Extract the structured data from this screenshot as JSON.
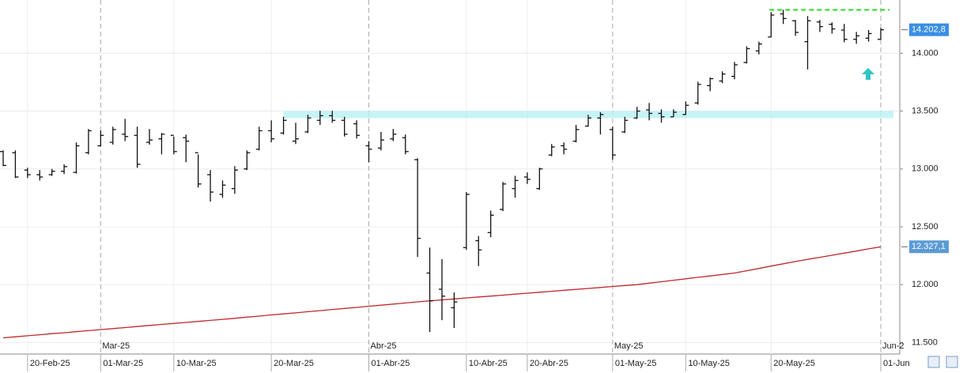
{
  "chart_data": {
    "type": "ohlc",
    "categories": [
      null,
      null,
      "20-Feb-25",
      null,
      null,
      null,
      null,
      null,
      "01-Mar-25",
      null,
      null,
      null,
      null,
      null,
      "10-Mar-25",
      null,
      null,
      null,
      null,
      null,
      null,
      null,
      "20-Mar-25",
      null,
      null,
      null,
      null,
      null,
      null,
      null,
      "01-Abr-25",
      null,
      null,
      null,
      null,
      null,
      null,
      null,
      "10-Abr-25",
      null,
      null,
      null,
      null,
      "20-Abr-25",
      null,
      null,
      null,
      null,
      null,
      null,
      "01-May-25",
      null,
      null,
      null,
      null,
      null,
      "10-May-25",
      null,
      null,
      null,
      null,
      null,
      null,
      "20-May-25",
      null,
      null,
      null,
      null,
      null,
      null,
      null,
      null,
      "01-Jun"
    ],
    "month_labels": [
      null,
      null,
      null,
      null,
      null,
      null,
      null,
      null,
      "Mar-25",
      null,
      null,
      null,
      null,
      null,
      null,
      null,
      null,
      null,
      null,
      null,
      null,
      null,
      null,
      null,
      null,
      null,
      null,
      null,
      null,
      null,
      "Abr-25",
      null,
      null,
      null,
      null,
      null,
      null,
      null,
      null,
      null,
      null,
      null,
      null,
      null,
      null,
      null,
      null,
      null,
      null,
      null,
      "May-25",
      null,
      null,
      null,
      null,
      null,
      null,
      null,
      null,
      null,
      null,
      null,
      null,
      null,
      null,
      null,
      null,
      null,
      null,
      null,
      null,
      null,
      "Jun-2"
    ],
    "open": [
      13150,
      13140,
      12990,
      12950,
      12950,
      12980,
      12970,
      13140,
      13200,
      13230,
      13300,
      13290,
      13230,
      13260,
      13290,
      13270,
      13140,
      12950,
      12780,
      12830,
      13000,
      13170,
      13330,
      13310,
      13240,
      13320,
      13420,
      13460,
      13420,
      13390,
      13200,
      13180,
      13260,
      13270,
      13080,
      12100,
      11960,
      11800,
      12320,
      12380,
      12450,
      12650,
      12830,
      12930,
      12830,
      13120,
      13200,
      13240,
      13370,
      13440,
      13340,
      13320,
      13440,
      13510,
      13480,
      13450,
      13470,
      13570,
      13720,
      13760,
      13800,
      13920,
      14020,
      14140,
      14340,
      14280,
      14100,
      14270,
      14250,
      14200,
      14120,
      14130,
      14120
    ],
    "high": [
      13160,
      13160,
      13010,
      12990,
      13000,
      13040,
      13229,
      13345,
      13331,
      13365,
      13433,
      13365,
      13345,
      13310,
      13280,
      13297,
      13126,
      12990,
      12900,
      13024,
      13160,
      13365,
      13420,
      13450,
      13399,
      13468,
      13502,
      13502,
      13450,
      13420,
      13240,
      13320,
      13345,
      13297,
      13092,
      12320,
      12220,
      11932,
      12800,
      12420,
      12640,
      12887,
      12940,
      12970,
      13010,
      13215,
      13229,
      13380,
      13468,
      13490,
      13365,
      13450,
      13536,
      13570,
      13515,
      13515,
      13583,
      13754,
      13790,
      13843,
      13925,
      14060,
      14100,
      14355,
      14375,
      14287,
      14321,
      14287,
      14266,
      14253,
      14184,
      14200,
      14218
    ],
    "low": [
      13024,
      12921,
      12921,
      12900,
      12940,
      12956,
      12960,
      13126,
      13195,
      13210,
      13240,
      13010,
      13210,
      13126,
      13126,
      13058,
      12840,
      12717,
      12751,
      12785,
      12990,
      13160,
      13229,
      13297,
      13215,
      13310,
      13380,
      13400,
      13280,
      13263,
      13058,
      13160,
      13240,
      13126,
      12239,
      11590,
      11693,
      11625,
      12300,
      12160,
      12410,
      12635,
      12751,
      12870,
      12819,
      13110,
      13126,
      13229,
      13365,
      13297,
      13080,
      13310,
      13433,
      13420,
      13399,
      13450,
      13468,
      13556,
      13672,
      13741,
      13775,
      13911,
      13990,
      14137,
      14253,
      14150,
      13860,
      14184,
      14170,
      14095,
      14082,
      14100,
      14116
    ],
    "close": [
      13030,
      12930,
      12950,
      12930,
      12980,
      13020,
      13200,
      13330,
      13290,
      13340,
      13280,
      13040,
      13250,
      13300,
      13150,
      13240,
      12870,
      12800,
      12860,
      12990,
      13140,
      13330,
      13260,
      13420,
      13260,
      13440,
      13460,
      13420,
      13300,
      13290,
      13170,
      13250,
      13300,
      13150,
      12400,
      11860,
      11900,
      11850,
      12780,
      12300,
      12600,
      12870,
      12900,
      12910,
      13000,
      13190,
      13170,
      13340,
      13440,
      13470,
      13120,
      13420,
      13500,
      13480,
      13450,
      13490,
      13550,
      13730,
      13780,
      13820,
      13900,
      14040,
      14080,
      14330,
      14300,
      14180,
      14280,
      14230,
      14210,
      14120,
      14150,
      14170,
      14203
    ],
    "bar_color": "#111111",
    "sma": {
      "color": "#c0282d",
      "values": [
        11540,
        11549,
        11558,
        11567,
        11576,
        11584,
        11593,
        11602,
        11611,
        11620,
        11629,
        11638,
        11647,
        11656,
        11664,
        11673,
        11682,
        11691,
        11700,
        11709,
        11719,
        11728,
        11738,
        11747,
        11756,
        11766,
        11775,
        11785,
        11794,
        11803,
        11813,
        11822,
        11832,
        11841,
        11851,
        11860,
        11868,
        11876,
        11885,
        11893,
        11901,
        11909,
        11918,
        11926,
        11934,
        11942,
        11951,
        11959,
        11967,
        11975,
        11984,
        11992,
        12000,
        12013,
        12025,
        12038,
        12050,
        12063,
        12075,
        12088,
        12100,
        12120,
        12140,
        12160,
        12180,
        12200,
        12218,
        12236,
        12254,
        12272,
        12290,
        12309,
        12327
      ]
    },
    "last_price": {
      "value": 14202.8,
      "label": "14.202,8",
      "color": "#3a8ee6"
    },
    "sma_price": {
      "value": 12327.1,
      "label": "12.327,1",
      "color": "#5b9bd5"
    },
    "support_level": 13470,
    "support_color": "#b8f2f5",
    "resistance_level": 14375,
    "resistance_color": "#22dd22",
    "arrow_color": "#2ec4c4",
    "ylim": [
      11400,
      14460
    ],
    "yticks": [
      {
        "value": 11500,
        "label": "11.500"
      },
      {
        "value": 12000,
        "label": "12.000"
      },
      {
        "value": 12500,
        "label": "12.500"
      },
      {
        "value": 13000,
        "label": "13.000"
      },
      {
        "value": 13500,
        "label": "13.500"
      },
      {
        "value": 14000,
        "label": "14.000"
      }
    ],
    "grid": true
  }
}
